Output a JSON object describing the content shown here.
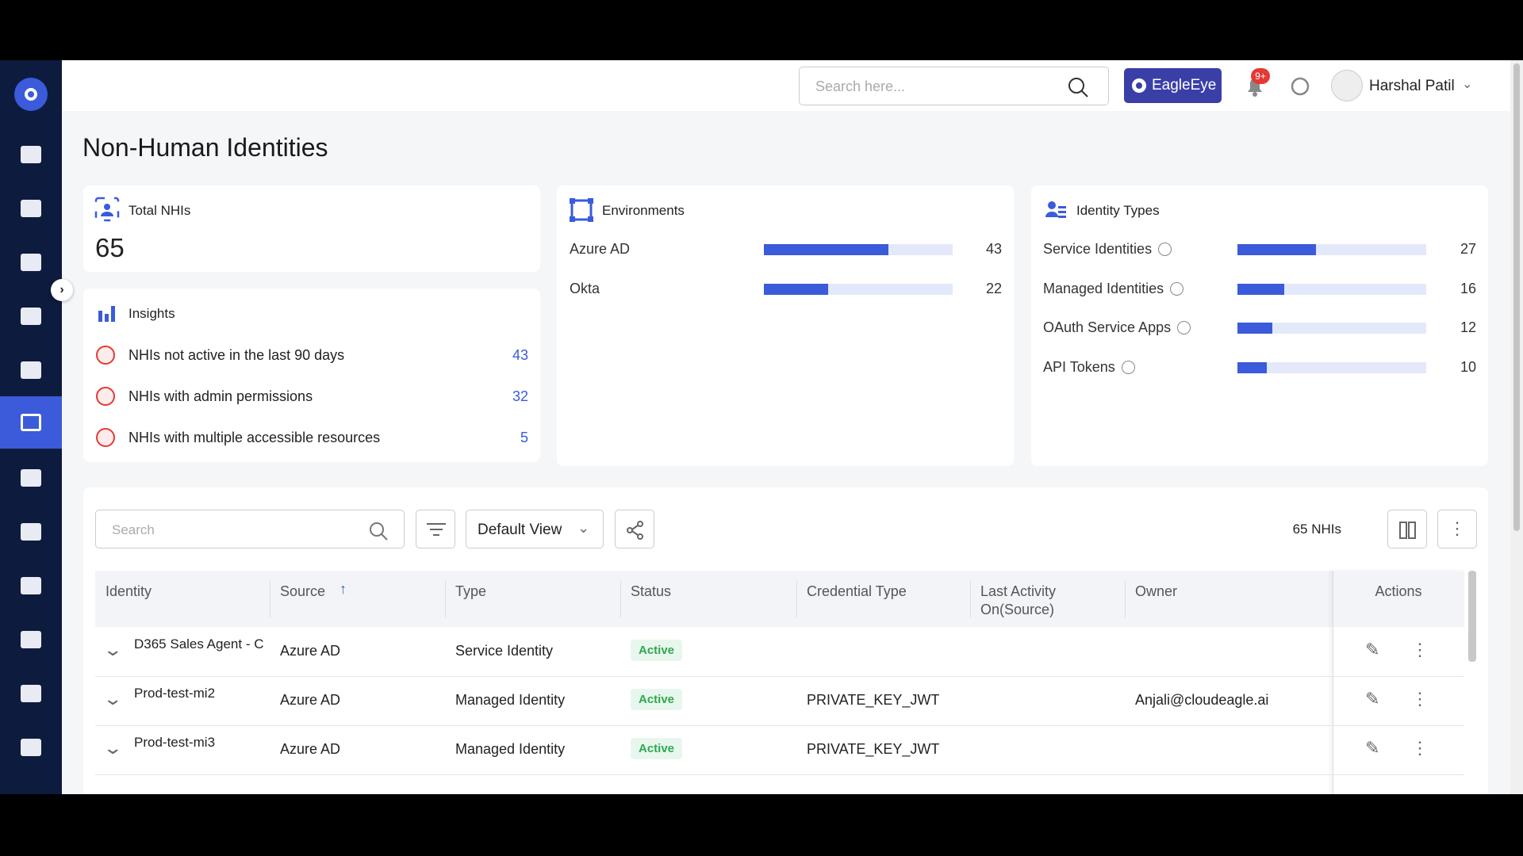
{
  "header": {
    "search_placeholder": "Search here...",
    "brand": "EagleEye",
    "notification_badge": "9+",
    "user": "Harshal Patil"
  },
  "page_title": "Non-Human Identities",
  "total": {
    "label": "Total NHIs",
    "value": 65
  },
  "insights": {
    "title": "Insights",
    "items": [
      {
        "label": "NHIs not active in the last 90 days",
        "value": 43
      },
      {
        "label": "NHIs with admin permissions",
        "value": 32
      },
      {
        "label": "NHIs with multiple accessible resources",
        "value": 5
      }
    ]
  },
  "environments": {
    "title": "Environments",
    "items": [
      {
        "name": "Azure AD",
        "value": 43
      },
      {
        "name": "Okta",
        "value": 22
      }
    ]
  },
  "identity_types": {
    "title": "Identity Types",
    "items": [
      {
        "name": "Service Identities",
        "value": 27
      },
      {
        "name": "Managed Identities",
        "value": 16
      },
      {
        "name": "OAuth Service Apps",
        "value": 12
      },
      {
        "name": "API Tokens",
        "value": 10
      }
    ]
  },
  "table": {
    "search_placeholder": "Search",
    "view": "Default View",
    "count_label": "65 NHIs",
    "columns": [
      "Identity",
      "Source",
      "Type",
      "Status",
      "Credential Type",
      "Last Activity On(Source)",
      "Owner",
      "Actions"
    ],
    "rows": [
      {
        "identity": "D365 Sales Agent - C",
        "source": "Azure AD",
        "type": "Service Identity",
        "status": "Active"
      },
      {
        "identity": "Prod-test-mi2",
        "source": "Azure AD",
        "type": "Managed Identity",
        "status": "Active",
        "credential_type": "PRIVATE_KEY_JWT",
        "owner": "Anjali@cloudeagle.ai"
      },
      {
        "identity": "Prod-test-mi3",
        "source": "Azure AD",
        "type": "Managed Identity",
        "status": "Active",
        "credential_type": "PRIVATE_KEY_JWT"
      }
    ]
  }
}
